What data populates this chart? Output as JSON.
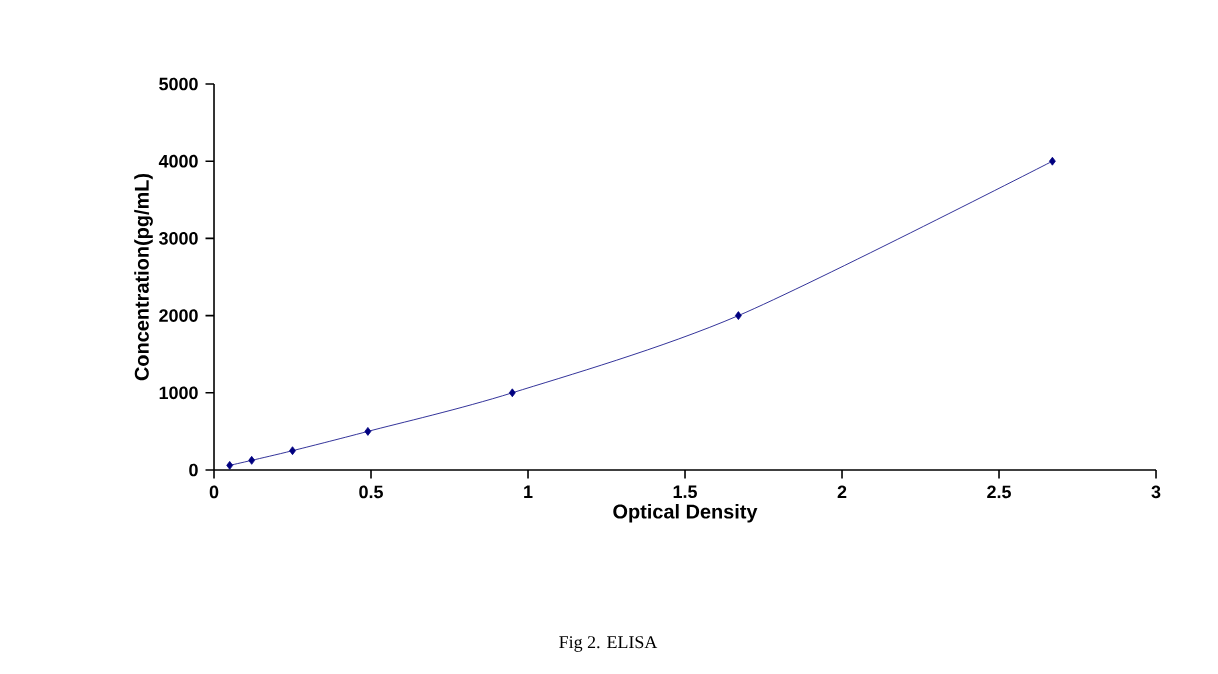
{
  "chart_data": {
    "type": "line",
    "xlabel": "Optical Density",
    "ylabel": "Concentration(pg/mL)",
    "annotations": [
      "Fig 2. ELISA"
    ],
    "x": [
      0.05,
      0.12,
      0.25,
      0.49,
      0.95,
      1.67,
      2.67
    ],
    "values": [
      60,
      125,
      250,
      500,
      1000,
      2000,
      4000
    ],
    "color": "#000080",
    "marker": "diamond",
    "line_style": "solid",
    "xlim": [
      0,
      3
    ],
    "xticks": [
      0,
      0.5,
      1,
      1.5,
      2,
      2.5,
      3
    ],
    "ylim": [
      0,
      5000
    ],
    "yticks": [
      0,
      1000,
      2000,
      3000,
      4000,
      5000
    ]
  }
}
